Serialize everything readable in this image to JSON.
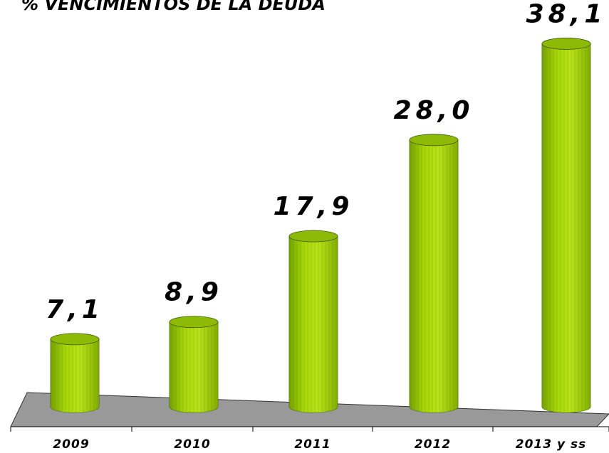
{
  "chart_data": {
    "type": "bar",
    "title": "% VENCIMIENTOS DE LA DEUDA",
    "categories": [
      "2009",
      "2010",
      "2011",
      "2012",
      "2013 y ss"
    ],
    "values": [
      7.1,
      8.9,
      17.9,
      28.0,
      38.1
    ],
    "value_labels": [
      "7,1",
      "8,9",
      "17,9",
      "28,0",
      "38,1"
    ],
    "color": "#9acd06"
  }
}
